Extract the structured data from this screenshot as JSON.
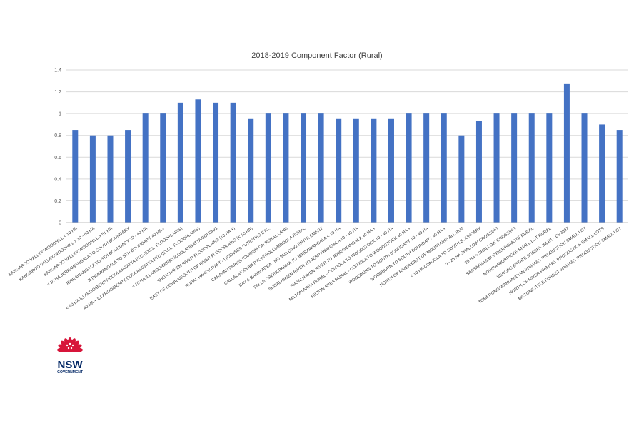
{
  "chart_data": {
    "type": "bar",
    "title": "2018-2019 Component Factor (Rural)",
    "xlabel": "",
    "ylabel": "",
    "ylim": [
      0,
      1.4
    ],
    "yticks": [
      "0",
      "0.2",
      "0.4",
      "0.6",
      "0.8",
      "1",
      "1.2",
      "1.4"
    ],
    "grid": true,
    "legend": "none",
    "bar_color": "#4472c4",
    "grid_color": "#d9d9d9",
    "categories": [
      "KANGAROO VALLEY/WOODHILL < 10 HA",
      "KANGAROO VALLEY/WOODHILL > 10 - 50 HA",
      "KANGAROO VALLEY/WOODHILL > 51 HA",
      "< 10 HA JERRAWANGALA TO SOUTH BOUNDARY",
      "JERRAWANGALA TO STH BOUNDARY 10 - 40 HA",
      "JERRAWANGALA TO STH BOUNDARY 40 HA +",
      "< 40 HA ILLAROO/BERRY/COOLANGATTA ETC (EXCL. FLOODPLAINS)",
      "40 HA + ILLAROO/BERRY/COOLANGATTA ETC (EXCL. FLOODPLAINS)",
      "< 10 HA ILLAROO/BERRY/COOLANGATTA/BOLONG",
      "SHOALHAVEN RIVER FLOODPLAINS (10 HA +)",
      "EAST OF NOWRA/SOUTH OF RIVER FLOODPLAINS (< 10 HA)",
      "RURAL HANDICRAFT - LICENSES / UTILITIES ETC.",
      "CARAVAN PARKS/TOURISM ON RURAL LAND",
      "CALLALA/COMBERTON/WOLLUMBOOLA RURAL",
      "BAY & BASIN AREA - NO BUILDING ENTITLEMENT",
      "FALLS CREEK/PARMA TO JERRAWANGALA < 10 HA",
      "SHOALHAVEN RIVER TO JERRAWANGALA 10 - 40 HA",
      "SHOALHAVEN RIVER TO JERRAWANGALA 40 HA +",
      "MILTON AREA RURAL - CONJOLA TO WOODSTOCK 10 - 40 HA",
      "MILTON AREA RURAL - CONJOLA TO WOODSTOCK 40 HA +",
      "WOODBURN TO SOUTH BOUNDARY 10 - 40 HA",
      "WOODBURN TO SOUTH BOUNDARY 40 HA +",
      "NORTH OF RIVER/EAST OF MOUNTAINS ALL RU2",
      "< 10 HA CONJOLA TO SOUTH BOUNDARY",
      "0 - 25 HA SHALLOW CROSSING",
      "25 HA + SHALLOW CROSSING",
      "SASSAFRAS/BURRIER/REMOTE RURAL",
      "NOWRA/WORRIGEE SMALL LOT RURAL",
      "VERONS ESTATE SUSSEX INLET - DP9897",
      "TOMERONG/WANDANDIAN PRIMARY PRODUCTION SMALL LOT",
      "NORTH OF RIVER PRIMARY PRODUCTION SMALL LOTS",
      "MILTON/LITTLE FOREST PRIMARY PRODUCTION SMALL LOT"
    ],
    "values": [
      0.85,
      0.8,
      0.8,
      0.85,
      1.0,
      1.0,
      1.1,
      1.13,
      1.1,
      1.1,
      0.95,
      1.0,
      1.0,
      1.0,
      1.0,
      0.95,
      0.95,
      0.95,
      0.95,
      1.0,
      1.0,
      1.0,
      0.8,
      0.93,
      1.0,
      1.0,
      1.0,
      1.0,
      1.27,
      1.0,
      0.9,
      0.85
    ]
  },
  "logo": {
    "word": "NSW",
    "sub": "GOVERNMENT",
    "petal_color": "#d7153a",
    "text_color": "#002664"
  }
}
